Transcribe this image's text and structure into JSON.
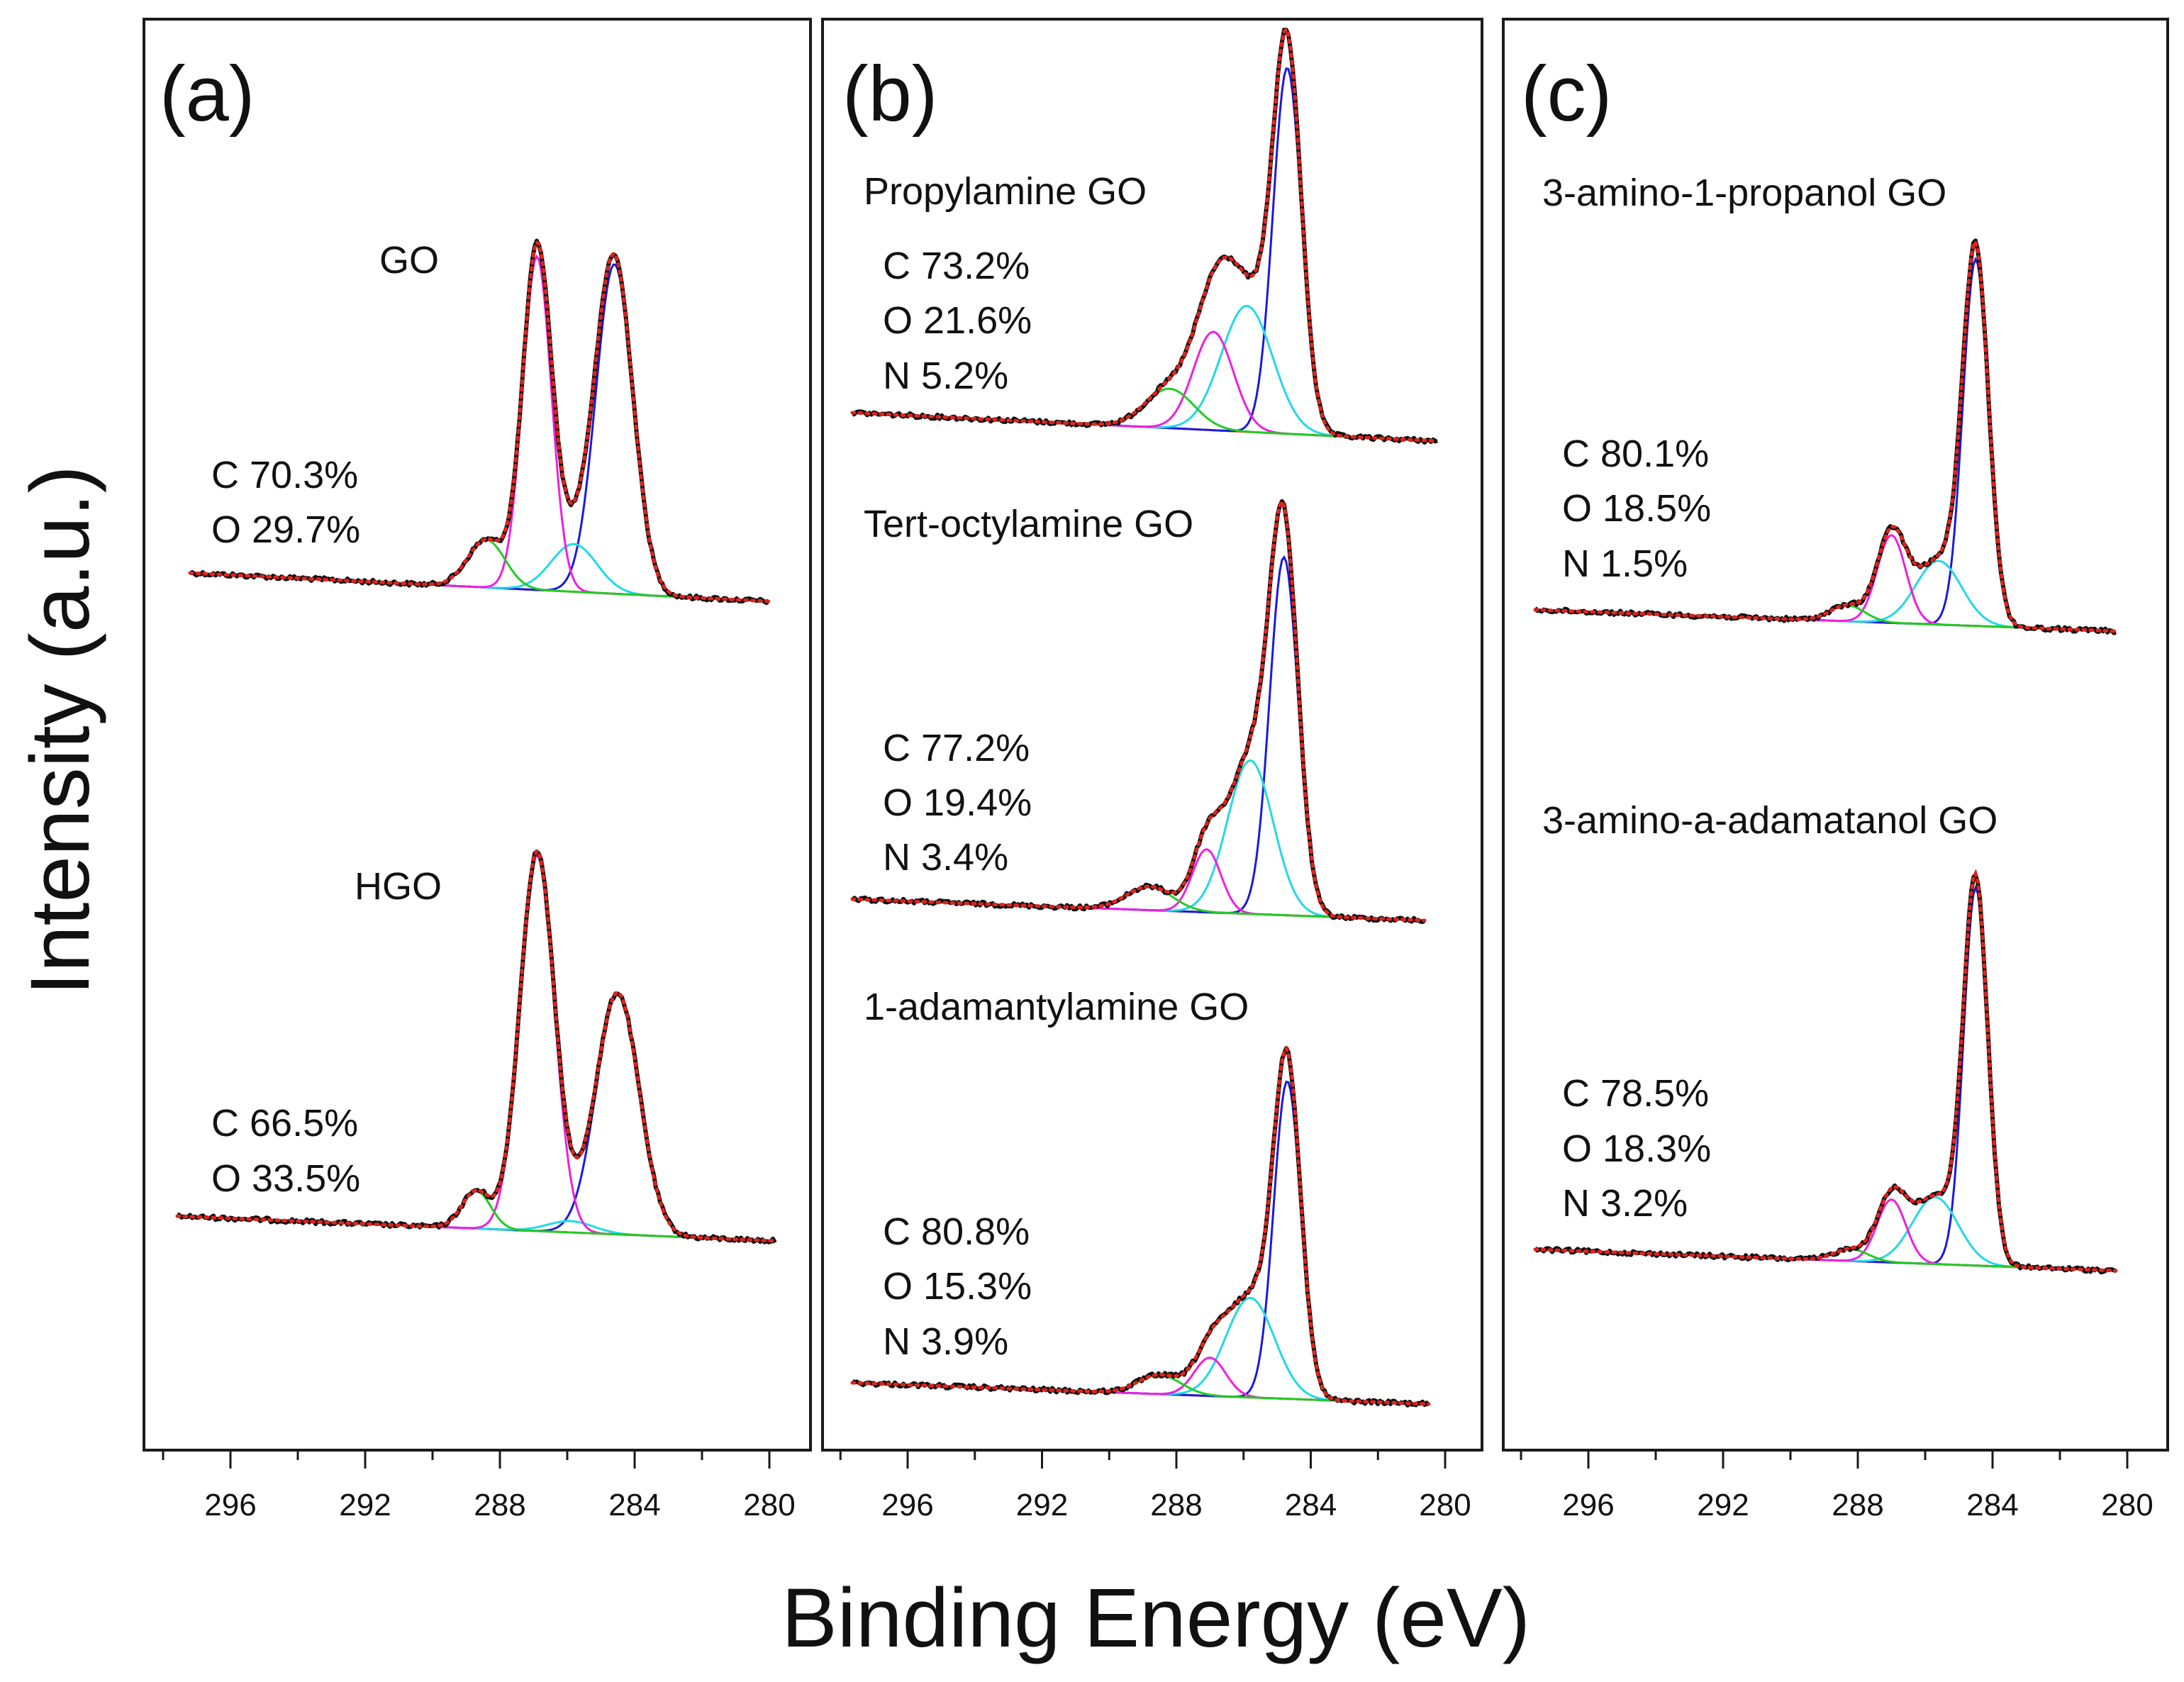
{
  "chart_data": {
    "type": "line",
    "title": "",
    "xlabel": "Binding Energy (eV)",
    "ylabel": "Intensity (a.u.)",
    "xlim": [
      298,
      279.5
    ],
    "x_ticks": [
      296,
      292,
      288,
      284,
      280
    ],
    "grid": false,
    "legend": "none",
    "component_colors": {
      "measured": "#111111",
      "fit_envelope": "#e0231c",
      "background": "#e0521c",
      "c1": "#1a1ae0",
      "c2": "#22d8e8",
      "c3": "#ee1fe0",
      "c4": "#22cc22"
    },
    "panels": [
      {
        "label": "(a)",
        "spectra": [
          {
            "name": "GO",
            "composition": [
              "C 70.3%",
              "O 29.7%"
            ],
            "background": [
              0.02,
              0.0
            ],
            "peaks": [
              {
                "comp": "c1",
                "center": 284.6,
                "height": 0.83,
                "fwhm": 1.3
              },
              {
                "comp": "c2",
                "center": 285.8,
                "height": 0.12,
                "fwhm": 1.6
              },
              {
                "comp": "c3",
                "center": 286.9,
                "height": 0.84,
                "fwhm": 1.0
              },
              {
                "comp": "c4",
                "center": 288.4,
                "height": 0.12,
                "fwhm": 1.3
              }
            ]
          },
          {
            "name": "HGO",
            "composition": [
              "C 66.5%",
              "O 33.5%"
            ],
            "background": [
              0.02,
              0.0
            ],
            "peaks": [
              {
                "comp": "c1",
                "center": 284.5,
                "height": 0.64,
                "fwhm": 1.5
              },
              {
                "comp": "c2",
                "center": 285.9,
                "height": 0.03,
                "fwhm": 1.6
              },
              {
                "comp": "c3",
                "center": 286.9,
                "height": 1.0,
                "fwhm": 1.2
              },
              {
                "comp": "c4",
                "center": 288.7,
                "height": 0.1,
                "fwhm": 1.0
              }
            ]
          }
        ]
      },
      {
        "label": "(b)",
        "spectra": [
          {
            "name": "Propylamine GO",
            "composition": [
              "C 73.2%",
              "O 21.6%",
              "N 5.2%"
            ],
            "background": [
              0.03,
              0.0
            ],
            "peaks": [
              {
                "comp": "c1",
                "center": 284.7,
                "height": 0.93,
                "fwhm": 1.0
              },
              {
                "comp": "c2",
                "center": 285.9,
                "height": 0.32,
                "fwhm": 1.8
              },
              {
                "comp": "c3",
                "center": 286.9,
                "height": 0.25,
                "fwhm": 1.4
              },
              {
                "comp": "c4",
                "center": 288.2,
                "height": 0.1,
                "fwhm": 1.7
              }
            ]
          },
          {
            "name": "Tert-octylamine GO",
            "composition": [
              "C 77.2%",
              "O 19.4%",
              "N 3.4%"
            ],
            "background": [
              0.02,
              0.0
            ],
            "peaks": [
              {
                "comp": "c1",
                "center": 284.8,
                "height": 0.91,
                "fwhm": 1.0
              },
              {
                "comp": "c2",
                "center": 285.8,
                "height": 0.39,
                "fwhm": 1.6
              },
              {
                "comp": "c3",
                "center": 287.1,
                "height": 0.16,
                "fwhm": 1.0
              },
              {
                "comp": "c4",
                "center": 288.8,
                "height": 0.06,
                "fwhm": 1.6
              }
            ]
          },
          {
            "name": "1-adamantylamine GO",
            "composition": [
              "C 80.8%",
              "O 15.3%",
              "N 3.9%"
            ],
            "background": [
              0.02,
              0.0
            ],
            "peaks": [
              {
                "comp": "c1",
                "center": 284.7,
                "height": 0.83,
                "fwhm": 0.95
              },
              {
                "comp": "c2",
                "center": 285.8,
                "height": 0.26,
                "fwhm": 1.7
              },
              {
                "comp": "c3",
                "center": 287.0,
                "height": 0.1,
                "fwhm": 1.1
              },
              {
                "comp": "c4",
                "center": 288.5,
                "height": 0.05,
                "fwhm": 1.5
              }
            ]
          }
        ]
      },
      {
        "label": "(c)",
        "spectra": [
          {
            "name": "3-amino-1-propanol GO",
            "composition": [
              "C 80.1%",
              "O 18.5%",
              "N 1.5%"
            ],
            "background": [
              0.02,
              0.0
            ],
            "peaks": [
              {
                "comp": "c1",
                "center": 284.5,
                "height": 0.92,
                "fwhm": 0.9
              },
              {
                "comp": "c2",
                "center": 285.6,
                "height": 0.16,
                "fwhm": 1.6
              },
              {
                "comp": "c3",
                "center": 287.0,
                "height": 0.22,
                "fwhm": 1.0
              },
              {
                "comp": "c4",
                "center": 288.3,
                "height": 0.04,
                "fwhm": 1.2
              }
            ]
          },
          {
            "name": "3-amino-a-adamatanol GO",
            "composition": [
              "C 78.5%",
              "O 18.3%",
              "N 3.2%"
            ],
            "background": [
              0.02,
              0.0
            ],
            "peaks": [
              {
                "comp": "c1",
                "center": 284.5,
                "height": 0.96,
                "fwhm": 0.85
              },
              {
                "comp": "c2",
                "center": 285.7,
                "height": 0.17,
                "fwhm": 1.6
              },
              {
                "comp": "c3",
                "center": 287.0,
                "height": 0.16,
                "fwhm": 1.0
              },
              {
                "comp": "c4",
                "center": 288.2,
                "height": 0.03,
                "fwhm": 1.2
              }
            ]
          }
        ]
      }
    ]
  }
}
